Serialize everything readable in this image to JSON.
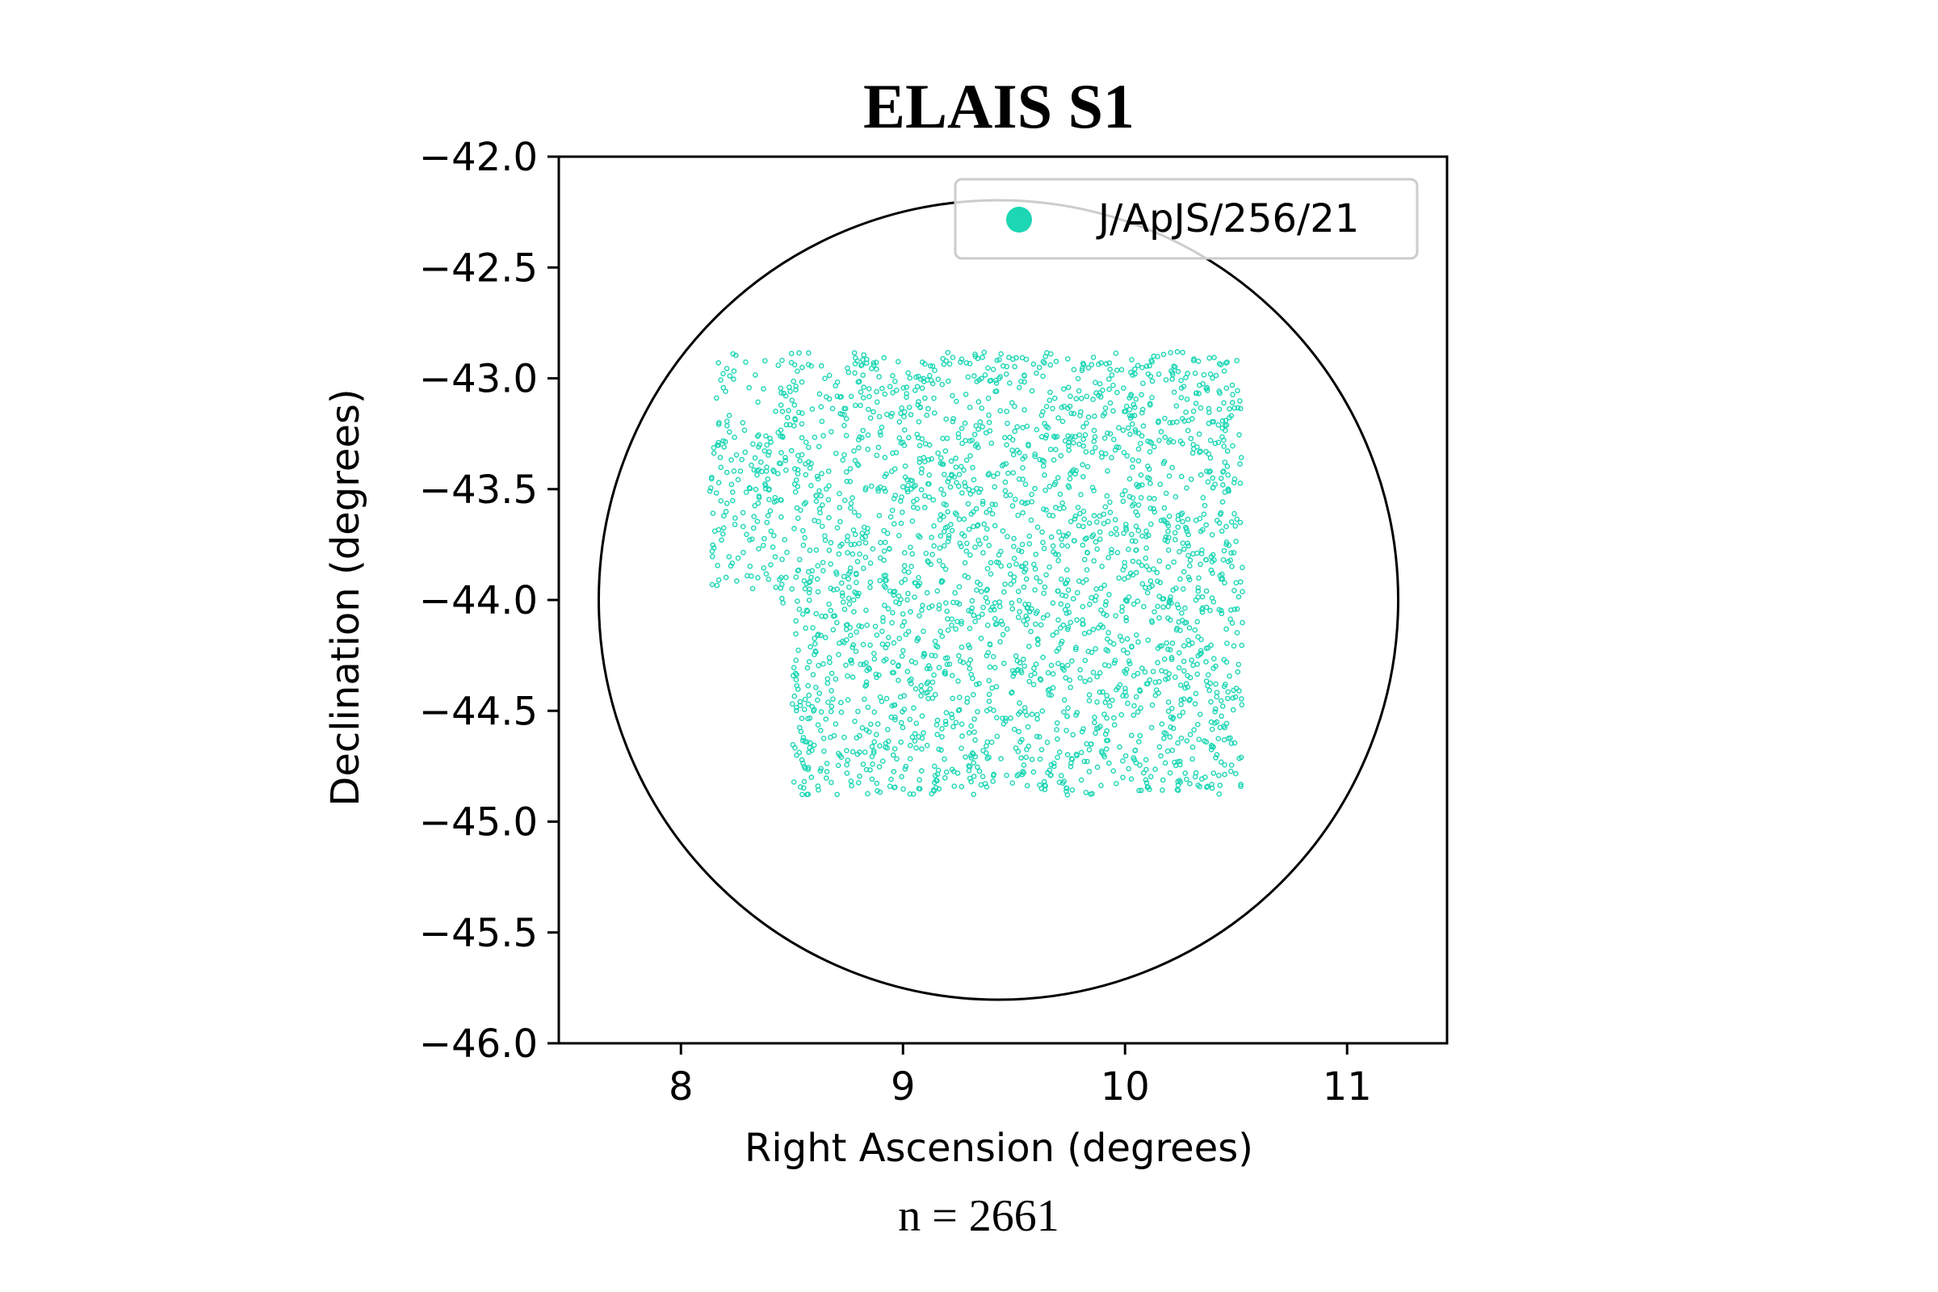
{
  "chart_data": {
    "type": "scatter",
    "title": "ELAIS S1",
    "xlabel": "Right Ascension (degrees)",
    "ylabel": "Declination (degrees)",
    "annotation": "n = 2661",
    "xlim": [
      7.45,
      11.45
    ],
    "ylim": [
      -46.0,
      -42.0
    ],
    "xticks": [
      8,
      9,
      10,
      11
    ],
    "yticks": [
      -42.0,
      -42.5,
      -43.0,
      -43.5,
      -44.0,
      -44.5,
      -45.0,
      -45.5,
      -46.0
    ],
    "xtick_labels": [
      "8",
      "9",
      "10",
      "11"
    ],
    "ytick_labels": [
      "−42.0",
      "−42.5",
      "−43.0",
      "−43.5",
      "−44.0",
      "−44.5",
      "−45.0",
      "−45.5",
      "−46.0"
    ],
    "grid": false,
    "legend_position": "top-right",
    "series": [
      {
        "name": "J/ApJS/256/21",
        "color": "#1cd6b4",
        "count": 2661,
        "region": {
          "upper_block": {
            "ra": [
              8.13,
              10.53
            ],
            "dec": [
              -44.05,
              -42.88
            ]
          },
          "lower_block": {
            "ra": [
              8.5,
              10.53
            ],
            "dec": [
              -44.88,
              -44.05
            ]
          }
        }
      }
    ],
    "circle": {
      "center_ra": 9.43,
      "center_dec": -44.0,
      "radius_deg": 1.8,
      "color": "#000000"
    }
  }
}
